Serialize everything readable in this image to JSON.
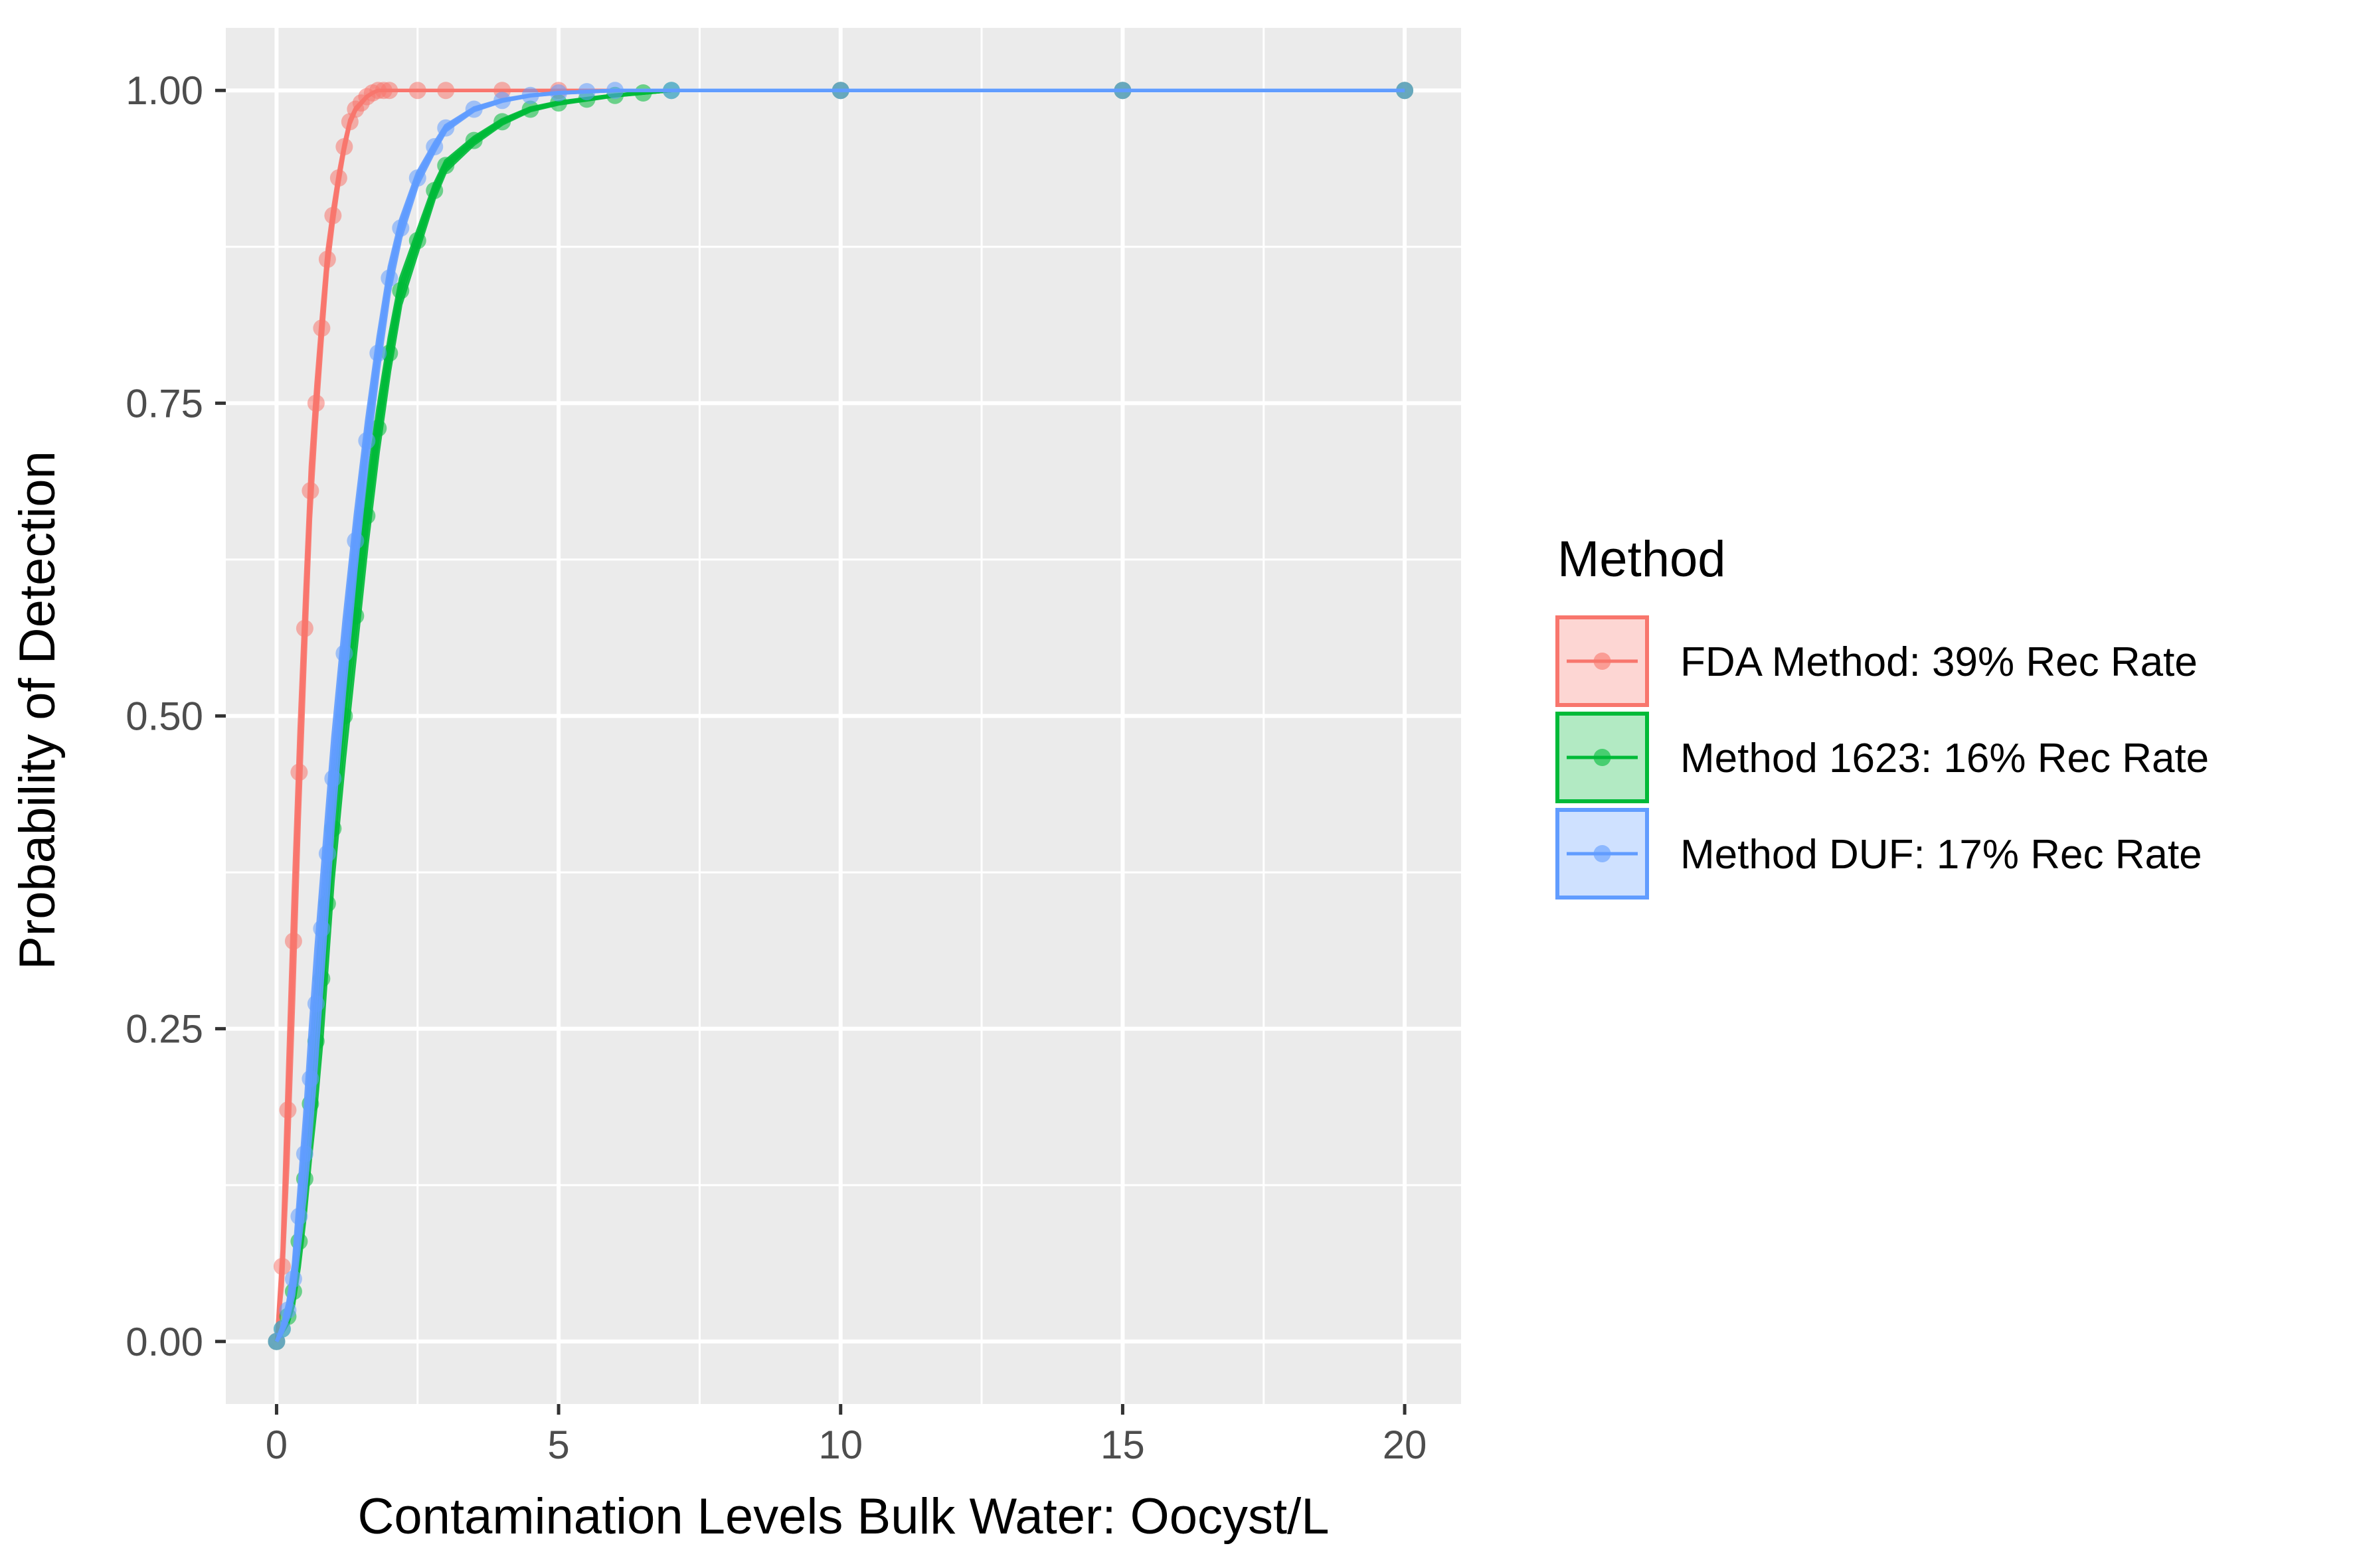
{
  "chart_data": {
    "type": "line",
    "title": "",
    "xlabel": "Contamination Levels Bulk Water: Oocyst/L",
    "ylabel": "Probability of Detection",
    "xlim": [
      -0.9,
      21
    ],
    "ylim": [
      -0.05,
      1.05
    ],
    "x_ticks": [
      0,
      5,
      10,
      15,
      20
    ],
    "x_tick_labels": [
      "0",
      "5",
      "10",
      "15",
      "20"
    ],
    "y_ticks": [
      0,
      0.25,
      0.5,
      0.75,
      1.0
    ],
    "y_tick_labels": [
      "0.00",
      "0.25",
      "0.50",
      "0.75",
      "1.00"
    ],
    "grid": true,
    "panel_background": "#EBEBEB",
    "grid_color": "#FFFFFF",
    "legend": {
      "title": "Method",
      "position": "right"
    },
    "series": [
      {
        "name": "FDA Method: 39% Rec Rate",
        "color": "#F8766D",
        "x": [
          0,
          0.1,
          0.2,
          0.3,
          0.4,
          0.5,
          0.6,
          0.7,
          0.8,
          0.9,
          1.0,
          1.1,
          1.2,
          1.3,
          1.4,
          1.5,
          1.6,
          1.7,
          1.8,
          1.9,
          2.0,
          2.5,
          3,
          4,
          5,
          10,
          15,
          20
        ],
        "y": [
          0,
          0.06,
          0.185,
          0.32,
          0.455,
          0.57,
          0.68,
          0.75,
          0.81,
          0.865,
          0.9,
          0.93,
          0.955,
          0.975,
          0.985,
          0.99,
          0.995,
          0.998,
          1.0,
          1.0,
          1.0,
          1.0,
          1.0,
          1.0,
          1.0,
          1.0,
          1.0,
          1.0
        ]
      },
      {
        "name": "Method 1623: 16% Rec Rate",
        "color": "#00BA38",
        "x": [
          0,
          0.1,
          0.2,
          0.3,
          0.4,
          0.5,
          0.6,
          0.7,
          0.8,
          0.9,
          1.0,
          1.2,
          1.4,
          1.6,
          1.8,
          2.0,
          2.2,
          2.5,
          2.8,
          3.0,
          3.5,
          4.0,
          4.5,
          5.0,
          5.5,
          6.0,
          6.5,
          7,
          10,
          15,
          20
        ],
        "y": [
          0,
          0.01,
          0.02,
          0.04,
          0.08,
          0.13,
          0.19,
          0.24,
          0.29,
          0.35,
          0.41,
          0.5,
          0.58,
          0.66,
          0.73,
          0.79,
          0.84,
          0.88,
          0.92,
          0.94,
          0.96,
          0.975,
          0.985,
          0.99,
          0.993,
          0.996,
          0.998,
          1.0,
          1.0,
          1.0,
          1.0
        ]
      },
      {
        "name": "Method DUF: 17% Rec Rate",
        "color": "#619CFF",
        "x": [
          0,
          0.1,
          0.2,
          0.3,
          0.4,
          0.5,
          0.6,
          0.7,
          0.8,
          0.9,
          1.0,
          1.2,
          1.4,
          1.6,
          1.8,
          2.0,
          2.2,
          2.5,
          2.8,
          3.0,
          3.5,
          4.0,
          4.5,
          5.0,
          5.5,
          6.0,
          7,
          10,
          15,
          20
        ],
        "y": [
          0,
          0.01,
          0.025,
          0.05,
          0.1,
          0.15,
          0.21,
          0.27,
          0.33,
          0.39,
          0.45,
          0.55,
          0.64,
          0.72,
          0.79,
          0.85,
          0.89,
          0.93,
          0.955,
          0.97,
          0.985,
          0.992,
          0.996,
          0.998,
          0.999,
          1.0,
          1.0,
          1.0,
          1.0,
          1.0
        ]
      }
    ]
  }
}
